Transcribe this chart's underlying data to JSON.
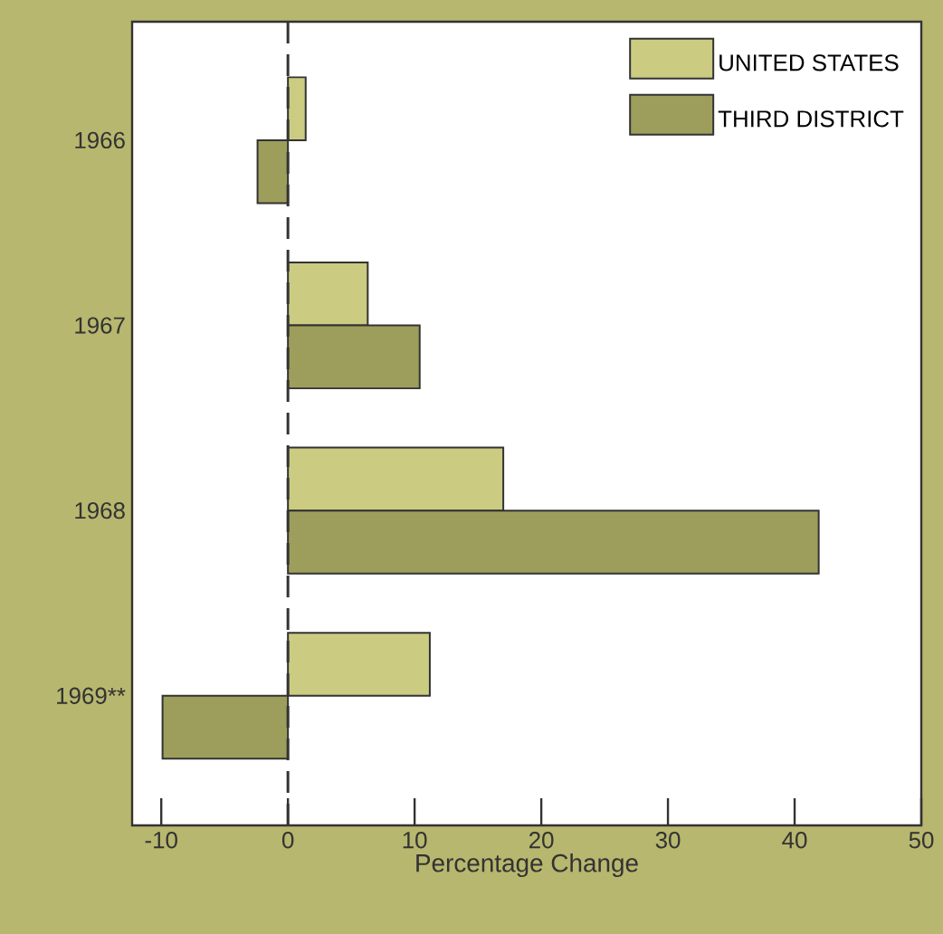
{
  "chart_data": {
    "type": "bar",
    "orientation": "horizontal",
    "xlabel": "Percentage Change",
    "categories": [
      "1966",
      "1967",
      "1968",
      "1969**"
    ],
    "series": [
      {
        "name": "UNITED STATES",
        "color": "#cbcb82",
        "values": [
          1.4,
          6.3,
          17.0,
          11.2
        ]
      },
      {
        "name": "THIRD DISTRICT",
        "color": "#9e9e5c",
        "values": [
          -2.4,
          10.4,
          41.9,
          -9.9
        ]
      }
    ],
    "xlim": [
      -12.3,
      50
    ],
    "xticks": [
      -10,
      0,
      10,
      20,
      30,
      40,
      50
    ],
    "legend": "top right",
    "ref_lines": [
      {
        "axis": "x",
        "value": 0,
        "line_style": "dashed"
      }
    ]
  }
}
